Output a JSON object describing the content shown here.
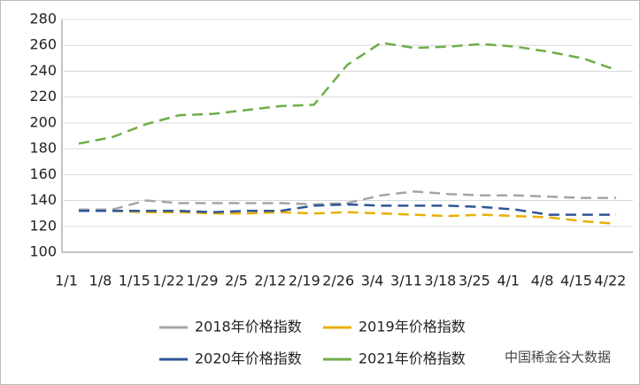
{
  "chart_data": {
    "type": "line",
    "categories": [
      "1/1",
      "1/8",
      "1/15",
      "1/22",
      "1/29",
      "2/5",
      "2/12",
      "2/19",
      "2/26",
      "3/4",
      "3/11",
      "3/18",
      "3/25",
      "4/1",
      "4/8",
      "4/15",
      "4/22"
    ],
    "series": [
      {
        "name": "2018年价格指数",
        "color": "#a5a5a5",
        "values": [
          133,
          133,
          140,
          138,
          138,
          138,
          138,
          137,
          138,
          144,
          147,
          145,
          144,
          144,
          143,
          142,
          142
        ]
      },
      {
        "name": "2019年价格指数",
        "color": "#e8b000",
        "values": [
          132,
          132,
          131,
          131,
          130,
          130,
          131,
          130,
          131,
          130,
          129,
          128,
          129,
          128,
          127,
          124,
          122
        ]
      },
      {
        "name": "2020年价格指数",
        "color": "#2f5597",
        "values": [
          132,
          132,
          132,
          132,
          131,
          132,
          132,
          136,
          137,
          136,
          136,
          136,
          135,
          133,
          129,
          129,
          129
        ]
      },
      {
        "name": "2021年价格指数",
        "color": "#70ad47",
        "values": [
          184,
          189,
          199,
          206,
          207,
          210,
          213,
          214,
          245,
          262,
          258,
          259,
          261,
          259,
          255,
          250,
          241
        ]
      }
    ],
    "ylim": [
      100,
      280
    ],
    "yticks": [
      100,
      120,
      140,
      160,
      180,
      200,
      220,
      240,
      260,
      280
    ],
    "watermark": "中国稀金谷大数据"
  }
}
